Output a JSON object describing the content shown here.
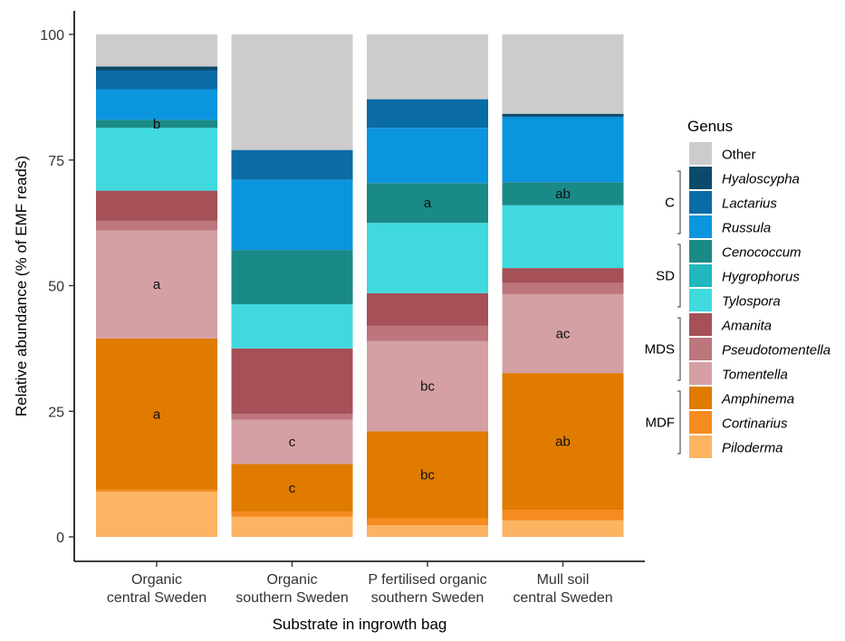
{
  "chart_data": {
    "type": "bar",
    "stacked": true,
    "xlabel": "Substrate in ingrowth bag",
    "ylabel": "Relative abundance (% of EMF reads)",
    "ylim": [
      0,
      100
    ],
    "yticks": [
      0,
      25,
      50,
      75,
      100
    ],
    "categories": [
      [
        "Organic",
        "central Sweden"
      ],
      [
        "Organic",
        "southern Sweden"
      ],
      [
        "P fertilised organic",
        "southern Sweden"
      ],
      [
        "Mull soil",
        "central Sweden"
      ]
    ],
    "series": [
      {
        "name": "Piloderma",
        "italic": true,
        "color": "#FDB462",
        "values": [
          9.0,
          4.0,
          2.3,
          3.3
        ]
      },
      {
        "name": "Cortinarius",
        "italic": true,
        "color": "#F68B1F",
        "values": [
          0.4,
          1.0,
          1.4,
          2.1
        ]
      },
      {
        "name": "Amphinema",
        "italic": true,
        "color": "#E07B00",
        "values": [
          30.1,
          9.5,
          17.3,
          27.2
        ],
        "labels": [
          "a",
          "c",
          "bc",
          "ab"
        ]
      },
      {
        "name": "Tomentella",
        "italic": true,
        "color": "#D4A0A4",
        "values": [
          21.5,
          8.8,
          18.0,
          15.7
        ],
        "labels": [
          "a",
          "c",
          "bc",
          "ac"
        ]
      },
      {
        "name": "Pseudotomentella",
        "italic": true,
        "color": "#BC767C",
        "values": [
          1.9,
          1.2,
          3.0,
          2.2
        ]
      },
      {
        "name": "Amanita",
        "italic": true,
        "color": "#A55157",
        "values": [
          6.0,
          13.0,
          6.5,
          3.0
        ]
      },
      {
        "name": "Tylospora",
        "italic": true,
        "color": "#40D9DE",
        "values": [
          12.5,
          8.8,
          14.0,
          12.5
        ]
      },
      {
        "name": "Hygrophorus",
        "italic": true,
        "color": "#20B8BE",
        "values": [
          0,
          0,
          0,
          0
        ]
      },
      {
        "name": "Cenococcum",
        "italic": true,
        "color": "#1A8A87",
        "values": [
          1.6,
          10.8,
          7.9,
          4.6
        ],
        "labels": [
          "b",
          "",
          "a",
          "ab"
        ]
      },
      {
        "name": "Russula",
        "italic": true,
        "color": "#0B95DE",
        "values": [
          6.1,
          14.0,
          11.0,
          12.9
        ]
      },
      {
        "name": "Lactarius",
        "italic": true,
        "color": "#0A6BA5",
        "values": [
          3.7,
          5.9,
          5.7,
          0.2
        ]
      },
      {
        "name": "Hyaloscypha",
        "italic": true,
        "color": "#0A4A6B",
        "values": [
          0.8,
          0,
          0,
          0.5
        ]
      },
      {
        "name": "Other",
        "italic": false,
        "color": "#CCCCCC",
        "values": [
          6.4,
          23.0,
          12.9,
          15.8
        ]
      }
    ],
    "legend": {
      "title": "Genus",
      "position": "right",
      "order": [
        "Other",
        "Hyaloscypha",
        "Lactarius",
        "Russula",
        "Cenococcum",
        "Hygrophorus",
        "Tylospora",
        "Amanita",
        "Pseudotomentella",
        "Tomentella",
        "Amphinema",
        "Cortinarius",
        "Piloderma"
      ],
      "groups": [
        {
          "label": "C",
          "members": [
            "Hyaloscypha",
            "Lactarius",
            "Russula"
          ]
        },
        {
          "label": "SD",
          "members": [
            "Cenococcum",
            "Hygrophorus",
            "Tylospora"
          ]
        },
        {
          "label": "MDS",
          "members": [
            "Amanita",
            "Pseudotomentella",
            "Tomentella"
          ]
        },
        {
          "label": "MDF",
          "members": [
            "Amphinema",
            "Cortinarius",
            "Piloderma"
          ]
        }
      ]
    },
    "grid": false
  }
}
